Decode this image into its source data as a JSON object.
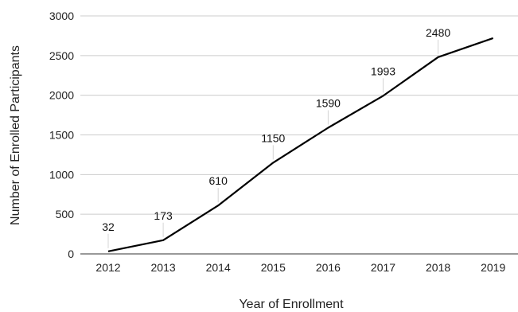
{
  "chart_data": {
    "type": "line",
    "title": "",
    "xlabel": "Year of Enrollment",
    "ylabel": "Number of Enrolled Participants",
    "categories": [
      "2012",
      "2013",
      "2014",
      "2015",
      "2016",
      "2017",
      "2018",
      "2019"
    ],
    "series": [
      {
        "values": [
          32,
          173,
          610,
          1150,
          1590,
          1993,
          2480,
          2720
        ],
        "data_labels": [
          "32",
          "173",
          "610",
          "1150",
          "1590",
          "1993",
          "2480",
          ""
        ]
      }
    ],
    "ylim": [
      0,
      3000
    ],
    "yticks": [
      "0",
      "500",
      "1000",
      "1500",
      "2000",
      "2500",
      "3000"
    ],
    "grid": true,
    "legend": "none",
    "line_color": "#000000",
    "grid_color": "#cccccc"
  }
}
